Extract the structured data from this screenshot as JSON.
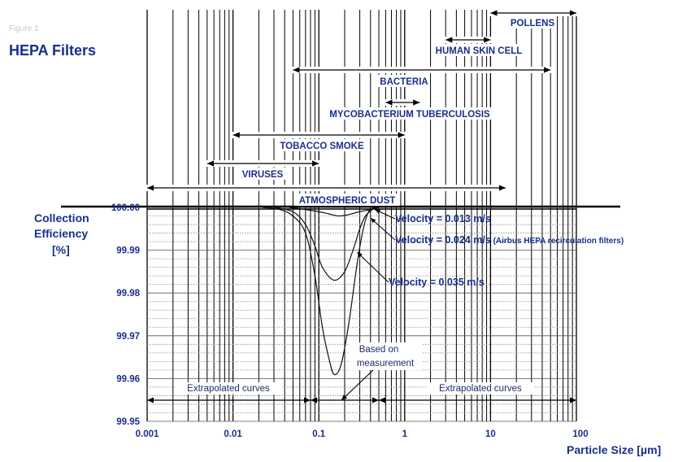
{
  "title_small": "Figure 1",
  "title": "HEPA Filters",
  "chart_data": {
    "type": "line",
    "xscale": "log",
    "xlim": [
      0.001,
      100
    ],
    "ylim": [
      99.95,
      100.0
    ],
    "xticks": [
      "0.001",
      "0.01",
      "0.1",
      "1",
      "10",
      "100"
    ],
    "yticks": [
      "100.00",
      "99.99",
      "99.98",
      "99.97",
      "99.96",
      "99.95"
    ],
    "xlabel": "Particle Size [µm]",
    "ylabel_lines": [
      "Collection",
      "Efficiency",
      "[%]"
    ],
    "grid": true,
    "series": [
      {
        "name": "Velocity = 0.013 m/s",
        "x": [
          0.045,
          0.07,
          0.1,
          0.13,
          0.17,
          0.22,
          0.3,
          0.4,
          0.5
        ],
        "y": [
          100.0,
          99.9995,
          99.999,
          99.9985,
          99.998,
          99.9983,
          99.999,
          99.9995,
          100.0
        ]
      },
      {
        "name": "Velocity = 0.024 m/s (Airbus HEPA recirculation filters)",
        "x": [
          0.03,
          0.05,
          0.07,
          0.09,
          0.11,
          0.15,
          0.2,
          0.25,
          0.3,
          0.35,
          0.45
        ],
        "y": [
          100.0,
          99.999,
          99.996,
          99.991,
          99.986,
          99.983,
          99.985,
          99.99,
          99.995,
          99.998,
          100.0
        ]
      },
      {
        "name": "Velocity = 0.035 m/s",
        "x": [
          0.022,
          0.035,
          0.05,
          0.07,
          0.09,
          0.11,
          0.13,
          0.15,
          0.18,
          0.22,
          0.28,
          0.33,
          0.38,
          0.45
        ],
        "y": [
          100.0,
          99.9995,
          99.998,
          99.994,
          99.984,
          99.972,
          99.965,
          99.961,
          99.963,
          99.972,
          99.987,
          99.995,
          99.999,
          100.0
        ]
      }
    ],
    "particle_ranges": [
      {
        "label": "POLLENS",
        "from": 10,
        "to": 100
      },
      {
        "label": "HUMAN SKIN CELL",
        "from": 3,
        "to": 10
      },
      {
        "label": "BACTERIA",
        "from": 0.05,
        "to": 50
      },
      {
        "label": "MYCOBACTERIUM  TUBERCULOSIS",
        "from": 0.6,
        "to": 1.5
      },
      {
        "label": "TOBACCO SMOKE",
        "from": 0.01,
        "to": 1
      },
      {
        "label": "VIRUSES",
        "from": 0.005,
        "to": 0.1
      },
      {
        "label": "ATMOSPHERIC  DUST",
        "from": 0.001,
        "to": 15
      }
    ],
    "bottom_ranges": [
      {
        "label": "Extrapolated  curves",
        "from": 0.001,
        "to": 0.08
      },
      {
        "label": "",
        "from": 0.08,
        "to": 0.5
      },
      {
        "label": "Extrapolated  curves",
        "from": 0.5,
        "to": 100
      }
    ],
    "annotation": [
      "Based on",
      "measurement"
    ]
  }
}
